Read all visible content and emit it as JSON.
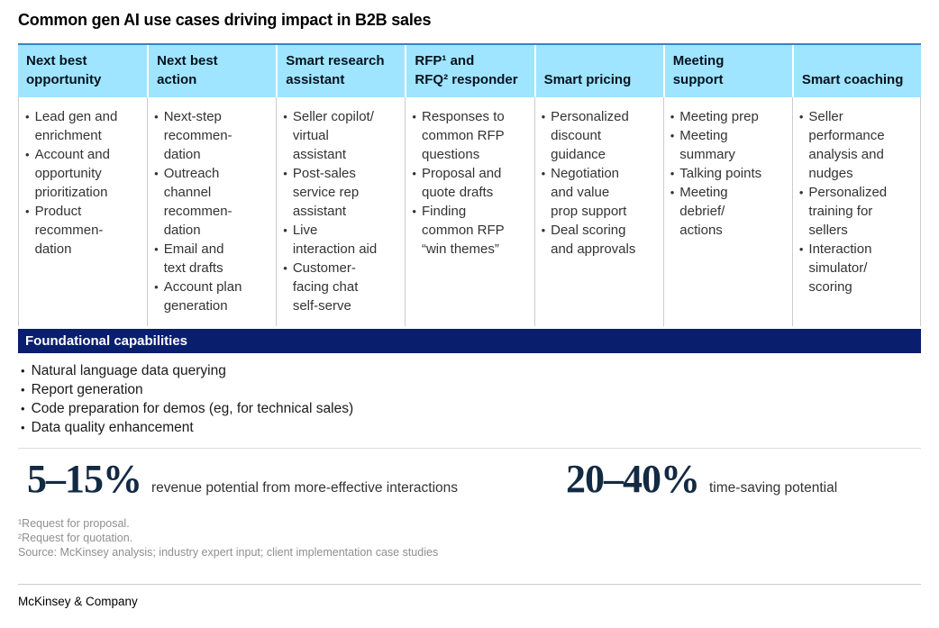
{
  "title": "Common gen AI use cases driving impact in B2B sales",
  "colors": {
    "header_blue": "#A0E5FF",
    "table_top_border": "#3C82C3",
    "navy": "#0A1E6E",
    "stat_navy": "#132A43",
    "body_text": "#333333",
    "divider": "#CCCCCC",
    "footnote_gray": "#8F8F8F"
  },
  "chart_data": {
    "type": "table",
    "title": "Common gen AI use cases driving impact in B2B sales",
    "columns": [
      {
        "header": "Next best\nopportunity",
        "items": [
          "Lead gen and\nenrichment",
          "Account and\nopportunity\nprioritization",
          "Product\nrecommen-\ndation"
        ]
      },
      {
        "header": "Next best\naction",
        "items": [
          "Next-step\nrecommen-\ndation",
          "Outreach\nchannel\nrecommen-\ndation",
          "Email and\ntext drafts",
          "Account plan\ngeneration"
        ]
      },
      {
        "header": "Smart research\nassistant",
        "items": [
          "Seller copilot/\nvirtual\nassistant",
          "Post-sales\nservice rep\nassistant",
          "Live\ninteraction aid",
          "Customer-\nfacing chat\nself-serve"
        ]
      },
      {
        "header": "RFP¹ and\nRFQ² responder",
        "items": [
          "Responses to\ncommon RFP\nquestions",
          "Proposal and\nquote drafts",
          "Finding\ncommon RFP\n“win themes”"
        ]
      },
      {
        "header": "Smart pricing",
        "items": [
          "Personalized\ndiscount\nguidance",
          "Negotiation\nand value\nprop support",
          "Deal scoring\nand approvals"
        ]
      },
      {
        "header": "Meeting\nsupport",
        "items": [
          "Meeting prep",
          "Meeting\nsummary",
          "Talking points",
          "Meeting\ndebrief/\nactions"
        ]
      },
      {
        "header": "Smart coaching",
        "items": [
          "Seller\nperformance\nanalysis and\nnudges",
          "Personalized\ntraining for\nsellers",
          "Interaction\nsimulator/\nscoring"
        ]
      }
    ],
    "foundational": {
      "title": "Foundational capabilities",
      "items": [
        "Natural language data querying",
        "Report generation",
        "Code preparation for demos (eg, for technical sales)",
        "Data quality enhancement"
      ]
    },
    "stats": [
      {
        "value": "5–15%",
        "label": "revenue potential from more-effective interactions"
      },
      {
        "value": "20–40%",
        "label": "time-saving potential"
      }
    ]
  },
  "footnotes": [
    "¹Request for proposal.",
    "²Request for quotation.",
    " Source: McKinsey analysis; industry expert input; client implementation case studies"
  ],
  "footer": "McKinsey & Company"
}
